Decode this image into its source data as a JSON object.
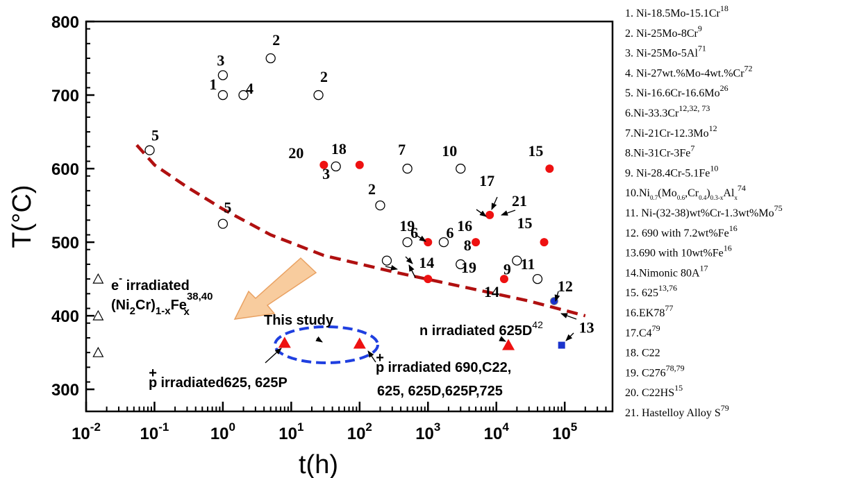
{
  "chart_data": {
    "type": "scatter",
    "xscale": "log",
    "xlim": [
      0.01,
      500000
    ],
    "ylim": [
      270,
      800
    ],
    "xlabel": "t(h)",
    "ylabel": "T(°C)",
    "xticks": [
      {
        "value": 0.01,
        "base": "10",
        "exp": "-2"
      },
      {
        "value": 0.1,
        "base": "10",
        "exp": "-1"
      },
      {
        "value": 1,
        "base": "10",
        "exp": "0"
      },
      {
        "value": 10,
        "base": "10",
        "exp": "1"
      },
      {
        "value": 100,
        "base": "10",
        "exp": "2"
      },
      {
        "value": 1000,
        "base": "10",
        "exp": "3"
      },
      {
        "value": 10000,
        "base": "10",
        "exp": "4"
      },
      {
        "value": 100000,
        "base": "10",
        "exp": "5"
      }
    ],
    "yticks": [
      300,
      400,
      500,
      600,
      700,
      800
    ],
    "open_circles": [
      {
        "x": 1,
        "y": 700,
        "label": "1"
      },
      {
        "x": 1,
        "y": 727,
        "label": "3"
      },
      {
        "x": 2,
        "y": 700,
        "label": "4"
      },
      {
        "x": 5,
        "y": 750,
        "label": "2"
      },
      {
        "x": 25,
        "y": 700,
        "label": "2"
      },
      {
        "x": 0.085,
        "y": 625,
        "label": "5"
      },
      {
        "x": 1,
        "y": 525,
        "label": "5"
      },
      {
        "x": 45,
        "y": 603,
        "label": "3"
      },
      {
        "x": 200,
        "y": 550,
        "label": "2"
      },
      {
        "x": 500,
        "y": 600,
        "label": "7"
      },
      {
        "x": 3000,
        "y": 600,
        "label": "10"
      },
      {
        "x": 500,
        "y": 500,
        "label": "6"
      },
      {
        "x": 1700,
        "y": 500,
        "label": "6"
      },
      {
        "x": 250,
        "y": 475,
        "label": ""
      },
      {
        "x": 3000,
        "y": 470,
        "label": "8"
      },
      {
        "x": 20000,
        "y": 475,
        "label": "9"
      },
      {
        "x": 40000,
        "y": 450,
        "label": "11"
      }
    ],
    "red_circles": [
      {
        "x": 30,
        "y": 605,
        "label": "20"
      },
      {
        "x": 100,
        "y": 605,
        "label": "18"
      },
      {
        "x": 1000,
        "y": 500,
        "label": "19"
      },
      {
        "x": 5000,
        "y": 500,
        "label": "16"
      },
      {
        "x": 8000,
        "y": 537,
        "label": "17"
      },
      {
        "x": 60000,
        "y": 600,
        "label": "15"
      },
      {
        "x": 50000,
        "y": 500,
        "label": "15"
      },
      {
        "x": 1000,
        "y": 450,
        "label": "14"
      },
      {
        "x": 13000,
        "y": 450,
        "label": "14"
      }
    ],
    "blue_circles": [
      {
        "x": 70000,
        "y": 420,
        "label": "12"
      }
    ],
    "blue_squares": [
      {
        "x": 90000,
        "y": 360,
        "label": "13"
      }
    ],
    "red_triangles": [
      {
        "x": 8,
        "y": 363
      },
      {
        "x": 100,
        "y": 362
      },
      {
        "x": 15000,
        "y": 360
      }
    ],
    "open_triangles": [
      {
        "x": 0.015,
        "y": 450
      },
      {
        "x": 0.015,
        "y": 400
      },
      {
        "x": 0.015,
        "y": 350
      }
    ],
    "dashed_curve": [
      [
        0.055,
        632
      ],
      [
        0.1,
        605
      ],
      [
        0.3,
        575
      ],
      [
        1,
        545
      ],
      [
        5,
        510
      ],
      [
        30,
        482
      ],
      [
        300,
        460
      ],
      [
        3000,
        440
      ],
      [
        30000,
        420
      ],
      [
        200000,
        400
      ]
    ],
    "annotations": {
      "e_irr_line1": "e",
      "e_irr_line1_sup": "-",
      "e_irr_line1_rest": " irradiated",
      "e_irr_line2": "(Ni",
      "e_irr_line2_sub": "2",
      "e_irr_line2_b": "Cr)",
      "e_irr_line2_sub2": "1-x",
      "e_irr_line2_c": "Fe",
      "e_irr_line2_sup": "38,40",
      "e_irr_line2_sub3": "x",
      "this_study": "This study",
      "p1_sup": "+",
      "p1_pre": "p",
      "p1_text": " irradiated625, 625P",
      "p2_pre": "p",
      "p2_sup": "+",
      "p2_text": " irradiated 690,C22,",
      "p2_line2": "625, 625D,625P,725",
      "n_text": "n irradiated 625D",
      "n_sup": "42"
    },
    "legend": [
      {
        "text": "1. Ni-18.5Mo-15.1Cr",
        "sup": "18"
      },
      {
        "text": "2. Ni-25Mo-8Cr",
        "sup": "9"
      },
      {
        "text": "3. Ni-25Mo-5Al",
        "sup": "71"
      },
      {
        "text": "4. Ni-27wt.%Mo-4wt.%Cr",
        "sup": "72"
      },
      {
        "text": "5. Ni-16.6Cr-16.6Mo",
        "sup": "26"
      },
      {
        "text": "6.Ni-33.3Cr",
        "sup": "12,32, 73"
      },
      {
        "text": "7.Ni-21Cr-12.3Mo",
        "sup": "12"
      },
      {
        "text": "8.Ni-31Cr-3Fe",
        "sup": "7"
      },
      {
        "text": "9. Ni-28.4Cr-5.1Fe",
        "sup": "10"
      },
      {
        "text": "10.Ni",
        "sub": "0.7",
        "b": "(Mo",
        "sub2": "0.6",
        "c": ",Cr",
        "sub3": "0.4",
        "d": ")",
        "sub4": "0.3-x",
        "e": "Al",
        "sub5": "x",
        "sup": "74"
      },
      {
        "text": "11. Ni-(32-38)wt%Cr-1.3wt%Mo",
        "sup": "75"
      },
      {
        "text": "12. 690 with 7.2wt%Fe",
        "sup": "16"
      },
      {
        "text": "13.690 with 10wt%Fe",
        "sup": "16"
      },
      {
        "text": "14.Nimonic 80A",
        "sup": "17"
      },
      {
        "text": "15. 625",
        "sup": "13,76"
      },
      {
        "text": "16.EK78",
        "sup": "77"
      },
      {
        "text": "17.C4",
        "sup": "79"
      },
      {
        "text": "18. C22",
        "sup": ""
      },
      {
        "text": "19. C276",
        "sup": "78,79"
      },
      {
        "text": "20. C22HS",
        "sup": "15"
      },
      {
        "text": "21. Hastelloy Alloy S",
        "sup": "79"
      }
    ],
    "colors": {
      "red": "#ee1111",
      "blue": "#1a33cc",
      "curve": "#b01010",
      "ellipse": "#1f3fe0",
      "arrow_fill": "#f8c896",
      "arrow_stroke": "#e89a55"
    }
  }
}
